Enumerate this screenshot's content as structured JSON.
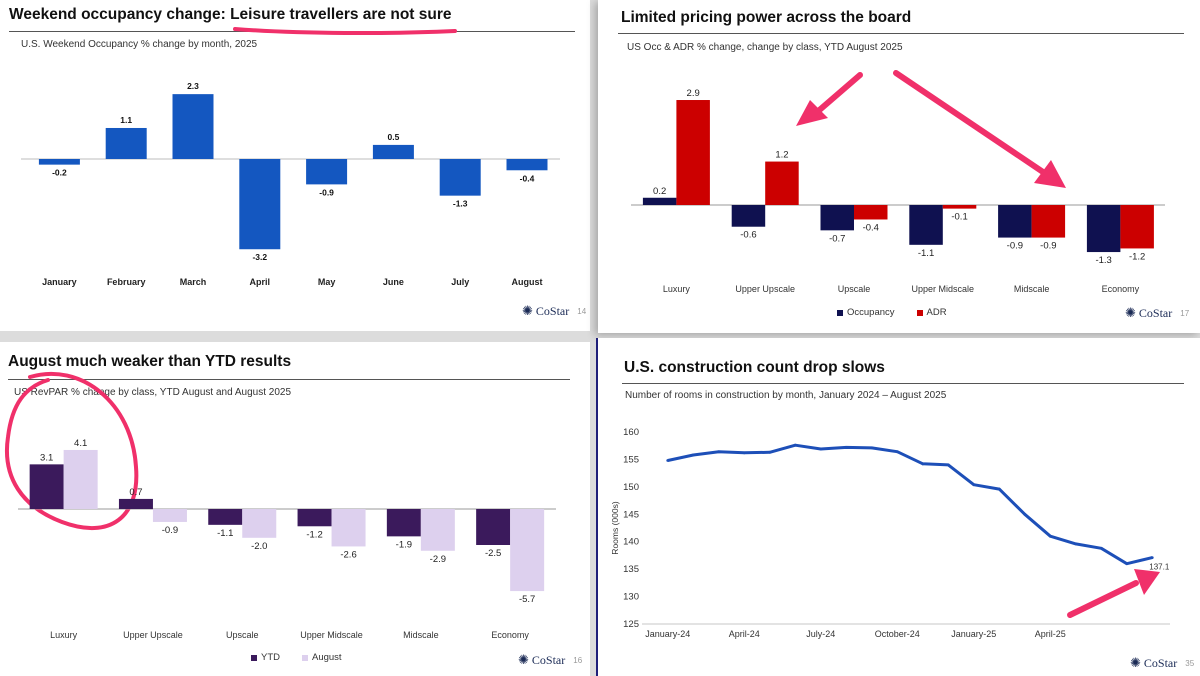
{
  "panels": {
    "weekend": {
      "title_plain": "Weekend occupancy change: ",
      "title_emph": "Leisure travellers are not sure",
      "subtitle": "U.S. Weekend Occupancy % change by month, 2025",
      "brand": "CoStar",
      "page": "14"
    },
    "pricing": {
      "title": "Limited pricing power across the board",
      "subtitle": "US Occ & ADR % change, change by class, YTD August 2025",
      "brand": "CoStar",
      "page": "17"
    },
    "august": {
      "title": "August much weaker than YTD results",
      "subtitle": "US RevPAR % change by class, YTD August and August  2025",
      "brand": "CoStar",
      "page": "16"
    },
    "construction": {
      "title": "U.S. construction count drop slows",
      "subtitle": "Number of rooms in construction by month, January 2024 – August 2025",
      "brand": "CoStar",
      "page": "35"
    }
  },
  "colors": {
    "blue_bar": "#1457c0",
    "navy": "#0f1150",
    "red": "#cc0000",
    "dark_purple": "#3b1a5c",
    "light_purple": "#ddd0ee",
    "line": "#1d4fb8",
    "annotation_pink": "#f0306a"
  },
  "icons": {
    "brand_mark": "costar-logo-icon",
    "annotation_circle": "circle-annotation-icon",
    "annotation_arrow": "arrow-annotation-icon"
  },
  "chart_data": [
    {
      "id": "weekend",
      "type": "bar",
      "categories": [
        "January",
        "February",
        "March",
        "April",
        "May",
        "June",
        "July",
        "August"
      ],
      "values": [
        -0.2,
        1.1,
        2.3,
        -3.2,
        -0.9,
        0.5,
        -1.3,
        -0.4
      ],
      "value_labels": [
        "-0.2",
        "1.1",
        "2.3",
        "-3.2",
        "-0.9",
        "0.5",
        "-1.3",
        "-0.4"
      ],
      "ylim": [
        -3.2,
        2.3
      ],
      "grid": false
    },
    {
      "id": "pricing",
      "type": "bar",
      "categories": [
        "Luxury",
        "Upper Upscale",
        "Upscale",
        "Upper Midscale",
        "Midscale",
        "Economy"
      ],
      "series": [
        {
          "name": "Occupancy",
          "values": [
            0.2,
            -0.6,
            -0.7,
            -1.1,
            -0.9,
            -1.3
          ],
          "labels": [
            "0.2",
            "-0.6",
            "-0.7",
            "-1.1",
            "-0.9",
            "-1.3"
          ]
        },
        {
          "name": "ADR",
          "values": [
            2.9,
            1.2,
            -0.4,
            -0.1,
            -0.9,
            -1.2
          ],
          "labels": [
            "2.9",
            "1.2",
            "-0.4",
            "-0.1",
            "-0.9",
            "-1.2"
          ]
        }
      ],
      "legend": "bottom",
      "grid": false
    },
    {
      "id": "august",
      "type": "bar",
      "categories": [
        "Luxury",
        "Upper Upscale",
        "Upscale",
        "Upper Midscale",
        "Midscale",
        "Economy"
      ],
      "series": [
        {
          "name": "YTD",
          "values": [
            3.1,
            0.7,
            -1.1,
            -1.2,
            -1.9,
            -2.5
          ],
          "labels": [
            "3.1",
            "0.7",
            "-1.1",
            "-1.2",
            "-1.9",
            "-2.5"
          ]
        },
        {
          "name": "August",
          "values": [
            4.1,
            -0.9,
            -2.0,
            -2.6,
            -2.9,
            -5.7
          ],
          "labels": [
            "4.1",
            "-0.9",
            "-2.0",
            "-2.6",
            "-2.9",
            "-5.7"
          ]
        }
      ],
      "legend": "bottom",
      "grid": false
    },
    {
      "id": "construction",
      "type": "line",
      "x": [
        "2024-01",
        "2024-02",
        "2024-03",
        "2024-04",
        "2024-05",
        "2024-06",
        "2024-07",
        "2024-08",
        "2024-09",
        "2024-10",
        "2024-11",
        "2024-12",
        "2025-01",
        "2025-02",
        "2025-03",
        "2025-04",
        "2025-05",
        "2025-06",
        "2025-07",
        "2025-08"
      ],
      "x_tick_labels": [
        "January-24",
        "April-24",
        "July-24",
        "October-24",
        "January-25",
        "April-25"
      ],
      "x_tick_index": [
        0,
        3,
        6,
        9,
        12,
        15
      ],
      "series": [
        {
          "values": [
            154.8,
            155.8,
            156.4,
            156.2,
            156.3,
            157.6,
            156.9,
            157.2,
            157.1,
            156.4,
            154.2,
            154.0,
            150.4,
            149.6,
            145.0,
            141.0,
            139.6,
            138.8,
            136.0,
            137.1
          ]
        }
      ],
      "end_label": "137.1",
      "ylabel": "Rooms (000s)",
      "ylim": [
        125,
        160
      ],
      "yticks": [
        125,
        130,
        135,
        140,
        145,
        150,
        155,
        160
      ],
      "grid": false
    }
  ]
}
